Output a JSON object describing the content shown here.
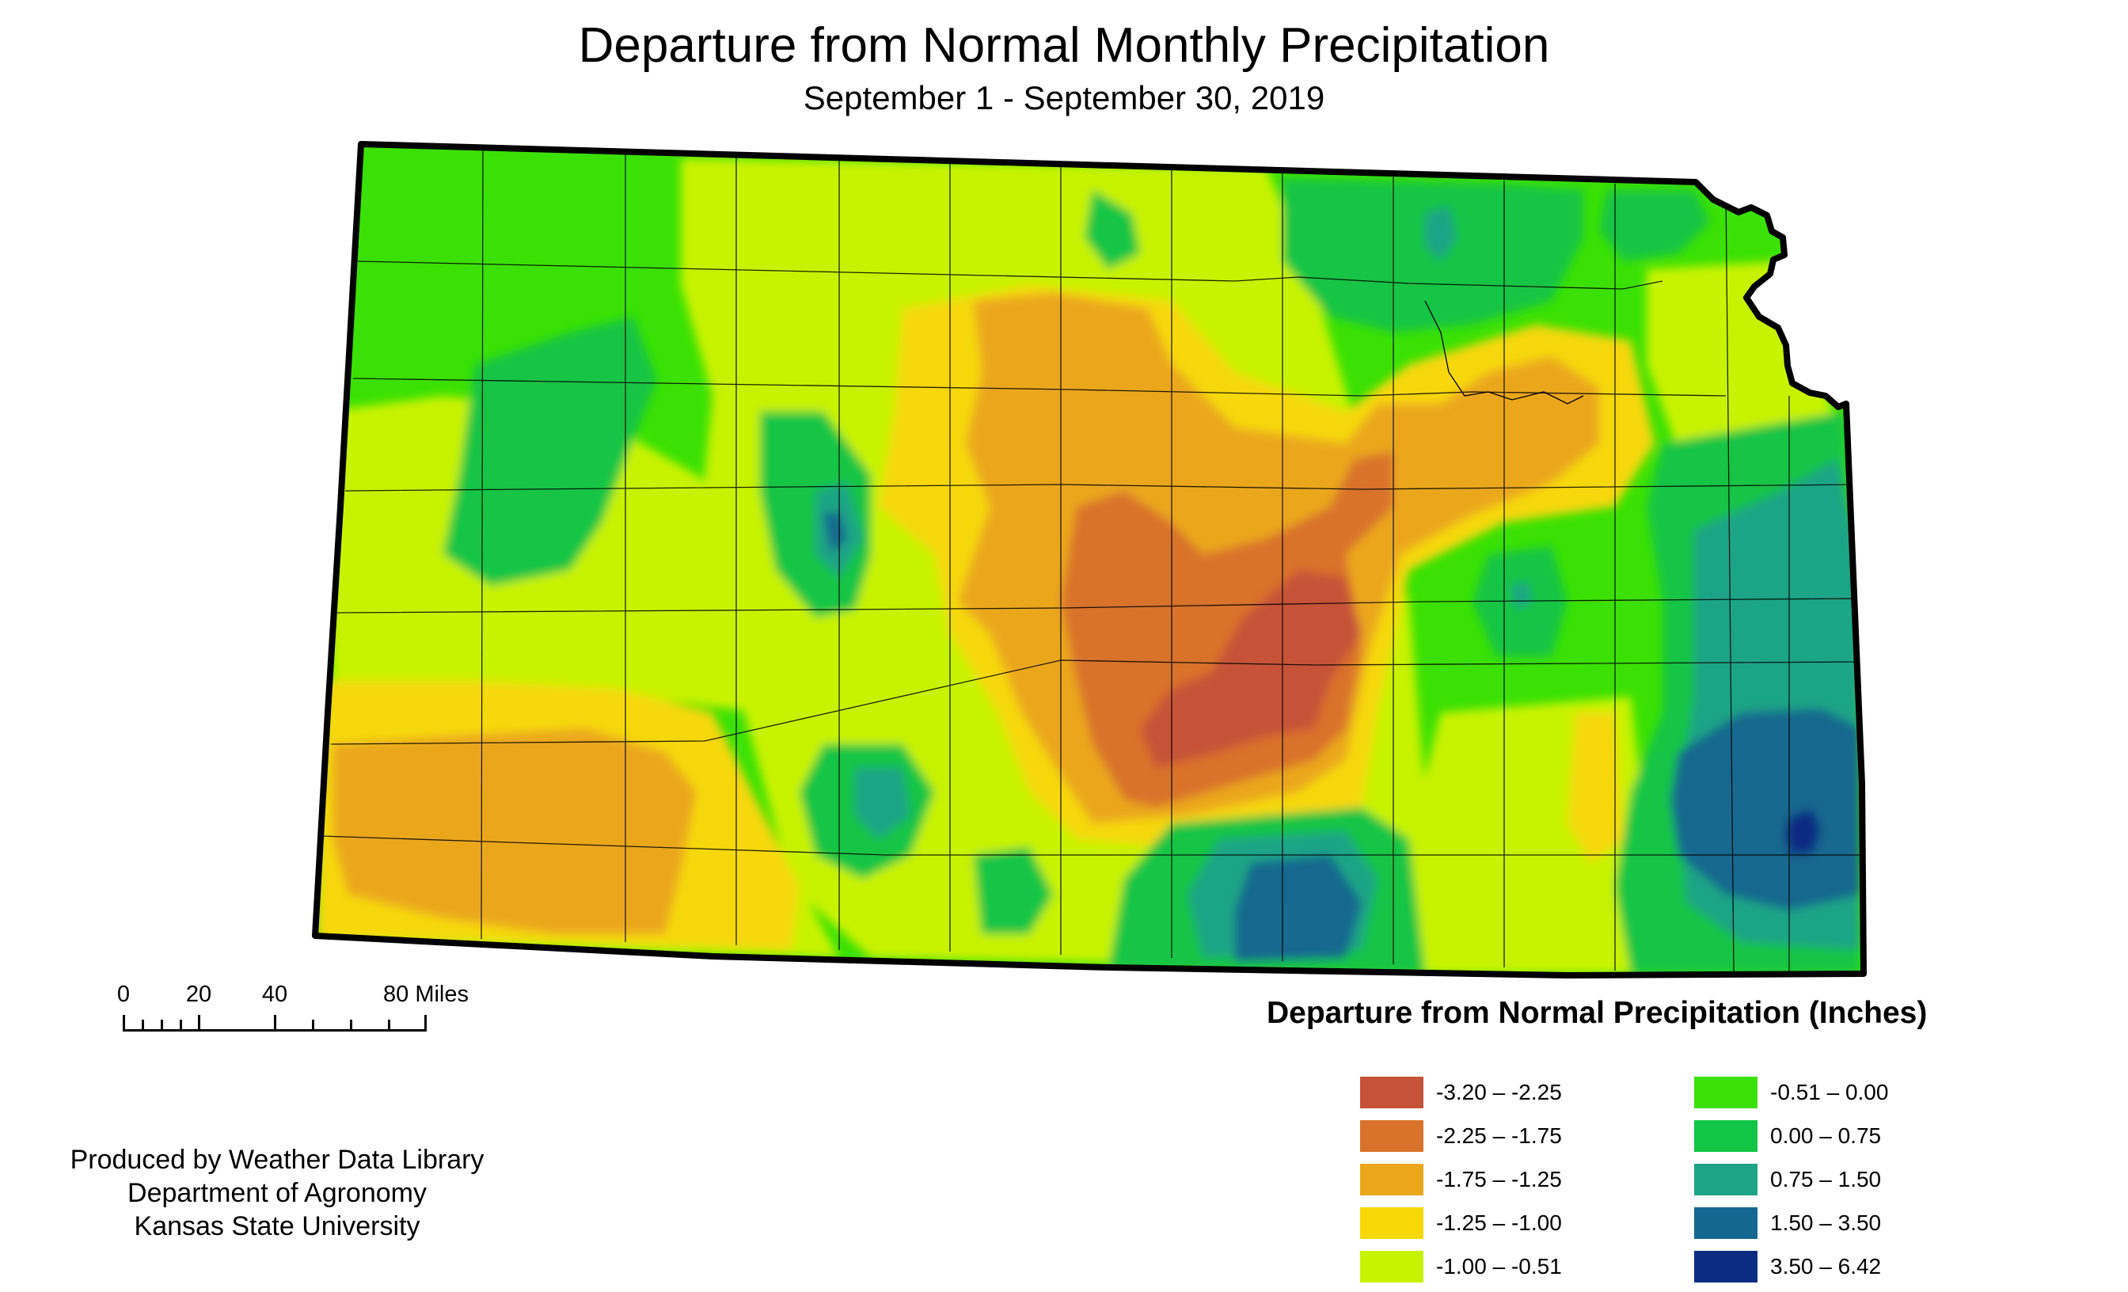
{
  "map": {
    "title": "Departure from Normal Monthly Precipitation",
    "subtitle": "September 1 - September 30, 2019",
    "state": "Kansas"
  },
  "scale_bar": {
    "labels": [
      "0",
      "20",
      "40",
      "80 Miles"
    ],
    "label_values": [
      0,
      20,
      40,
      80
    ],
    "max_miles": 80
  },
  "credit": {
    "line1": "Produced by Weather Data Library",
    "line2": "Department of Agronomy",
    "line3": "Kansas State University"
  },
  "legend": {
    "title": "Departure from Normal Precipitation (Inches)",
    "classes": [
      {
        "label": "-3.20 – -2.25",
        "color": "#c65339"
      },
      {
        "label": "-2.25 – -1.75",
        "color": "#d9722b"
      },
      {
        "label": "-1.75 – -1.25",
        "color": "#eba71c"
      },
      {
        "label": "-1.25 – -1.00",
        "color": "#f6d807"
      },
      {
        "label": "-1.00 – -0.51",
        "color": "#c8f300"
      },
      {
        "label": "-0.51 – 0.00",
        "color": "#3be104"
      },
      {
        "label": "0.00 – 0.75",
        "color": "#12c545"
      },
      {
        "label": "0.75 – 1.50",
        "color": "#1ea486"
      },
      {
        "label": "1.50 – 3.50",
        "color": "#14678e"
      },
      {
        "label": "3.50 – 6.42",
        "color": "#0b2c82"
      }
    ]
  }
}
